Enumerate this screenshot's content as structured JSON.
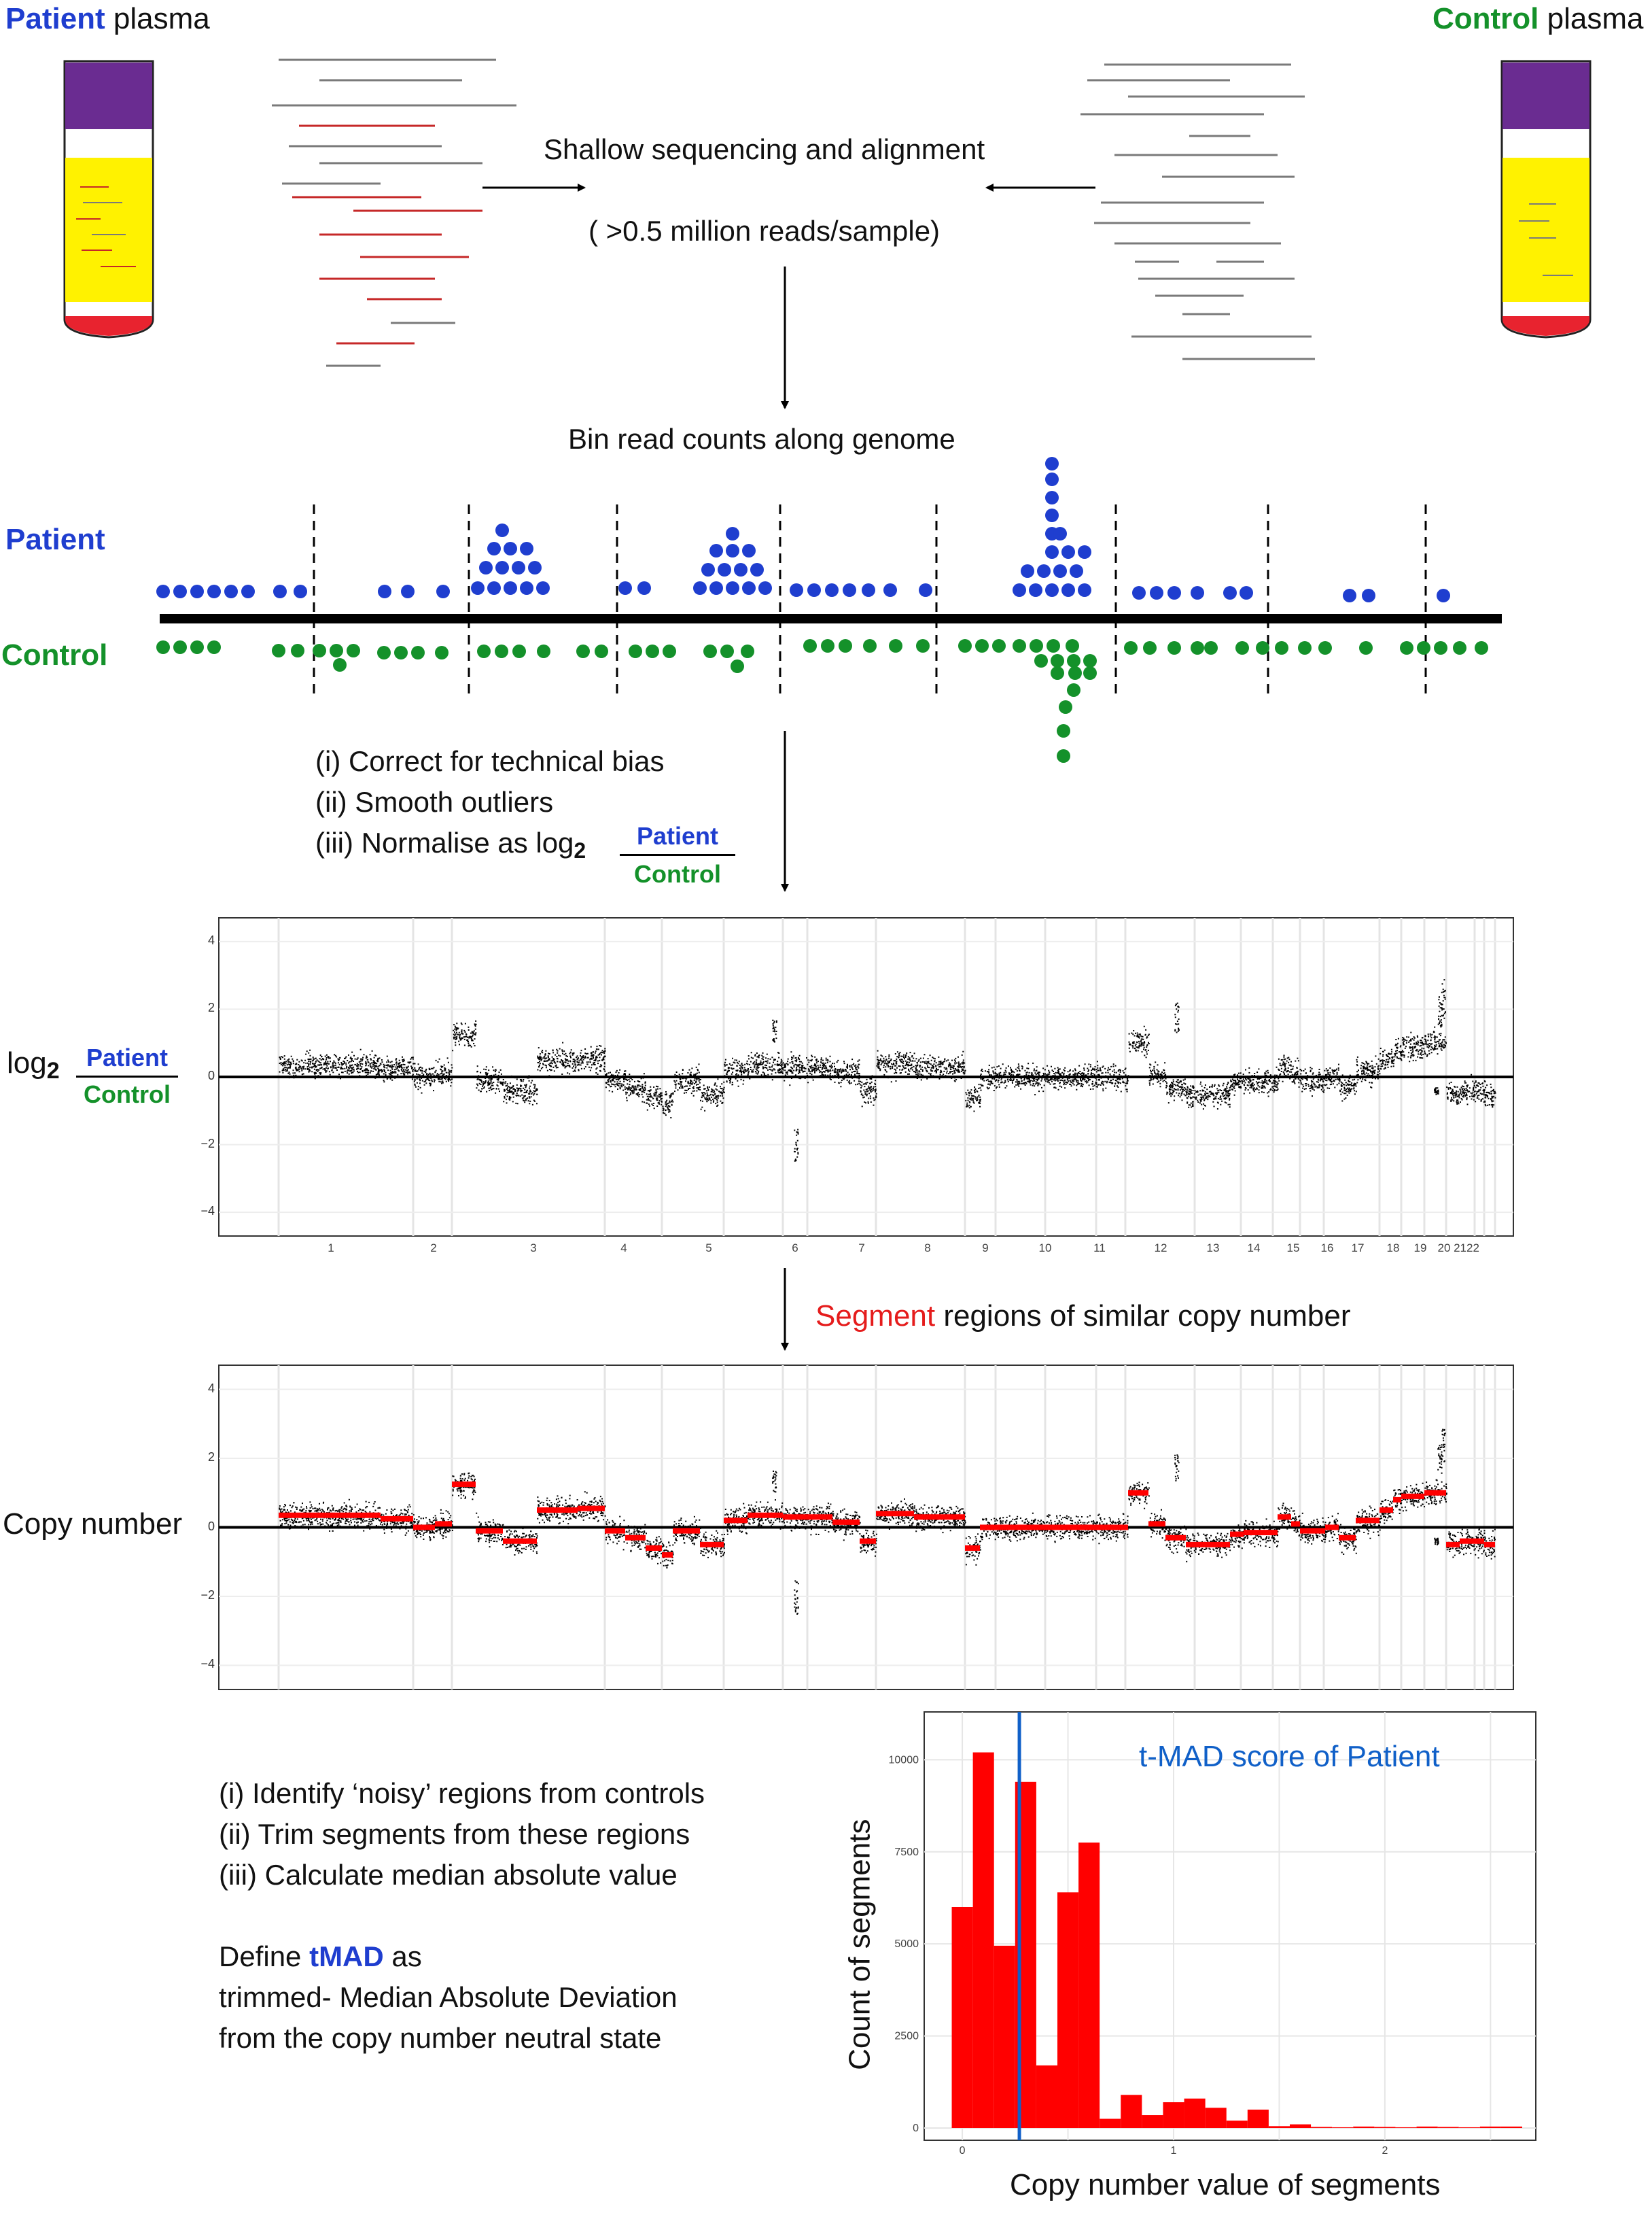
{
  "colors": {
    "patient": "#1f3ecf",
    "control": "#14912a",
    "read_red": "#c62828",
    "read_grey": "#7a7a7a",
    "tube_cap": "#6a2c91",
    "plasma": "#fff200",
    "blood": "#e8232f",
    "segment_red": "#ff0000",
    "tmad_line": "#1060c8"
  },
  "header": {
    "patient_word": "Patient",
    "patient_rest": " plasma",
    "control_word": "Control",
    "control_rest": " plasma"
  },
  "steps": {
    "sequencing": "Shallow sequencing and alignment",
    "reads": "( >0.5 million reads/sample)",
    "bin": "Bin read counts along genome",
    "correct": "(i) Correct for technical bias",
    "smooth": "(ii) Smooth outliers",
    "normalise": "(iii) Normalise as log",
    "log_sub": "2",
    "segment_word": "Segment",
    "segment_rest": " regions of similar copy number"
  },
  "dots_labels": {
    "patient": "Patient",
    "control": "Control"
  },
  "fraction": {
    "numerator": "Patient",
    "denominator": "Control"
  },
  "plot_labels": {
    "log_prefix": "log",
    "log_sub": "2",
    "copy_number": "Copy number",
    "y_ticks": [
      "4",
      "2",
      "0",
      "−2",
      "−4"
    ],
    "chromosomes": [
      "1",
      "2",
      "3",
      "4",
      "5",
      "6",
      "7",
      "8",
      "9",
      "10",
      "11",
      "12",
      "13",
      "14",
      "15",
      "16",
      "17",
      "18",
      "19",
      "20",
      "2122"
    ]
  },
  "tmad_text": {
    "line1": "(i) Identify ‘noisy’ regions from controls",
    "line2": "(ii) Trim segments from these regions",
    "line3": "(iii) Calculate median absolute value",
    "define_prefix": "Define ",
    "define_word": "tMAD",
    "define_suffix": " as",
    "line5": "trimmed- Median Absolute Deviation",
    "line6": "from the copy number neutral state"
  },
  "chart_data": {
    "type": "bar",
    "xlabel": "Copy number value of segments",
    "ylabel": "Count of segments",
    "annotation": "t-MAD score of Patient",
    "annotation_x": 0.27,
    "x_ticks": [
      0,
      1,
      2
    ],
    "y_ticks": [
      0,
      2500,
      5000,
      7500,
      10000
    ],
    "ylim": [
      0,
      10800
    ],
    "xlim": [
      -0.1,
      2.65
    ],
    "bin_width": 0.1,
    "bins_start": [
      -0.05,
      0.05,
      0.15,
      0.25,
      0.35,
      0.45,
      0.55,
      0.65,
      0.75,
      0.85,
      0.95,
      1.05,
      1.15,
      1.25,
      1.35,
      1.45,
      1.55,
      1.65,
      1.75,
      1.85,
      1.95,
      2.05,
      2.15,
      2.25,
      2.35,
      2.45,
      2.55
    ],
    "values": [
      6000,
      10200,
      4950,
      9400,
      1700,
      6400,
      7750,
      250,
      900,
      350,
      700,
      800,
      550,
      200,
      500,
      50,
      100,
      30,
      20,
      40,
      30,
      20,
      40,
      30,
      20,
      40,
      40
    ],
    "grid": true
  }
}
